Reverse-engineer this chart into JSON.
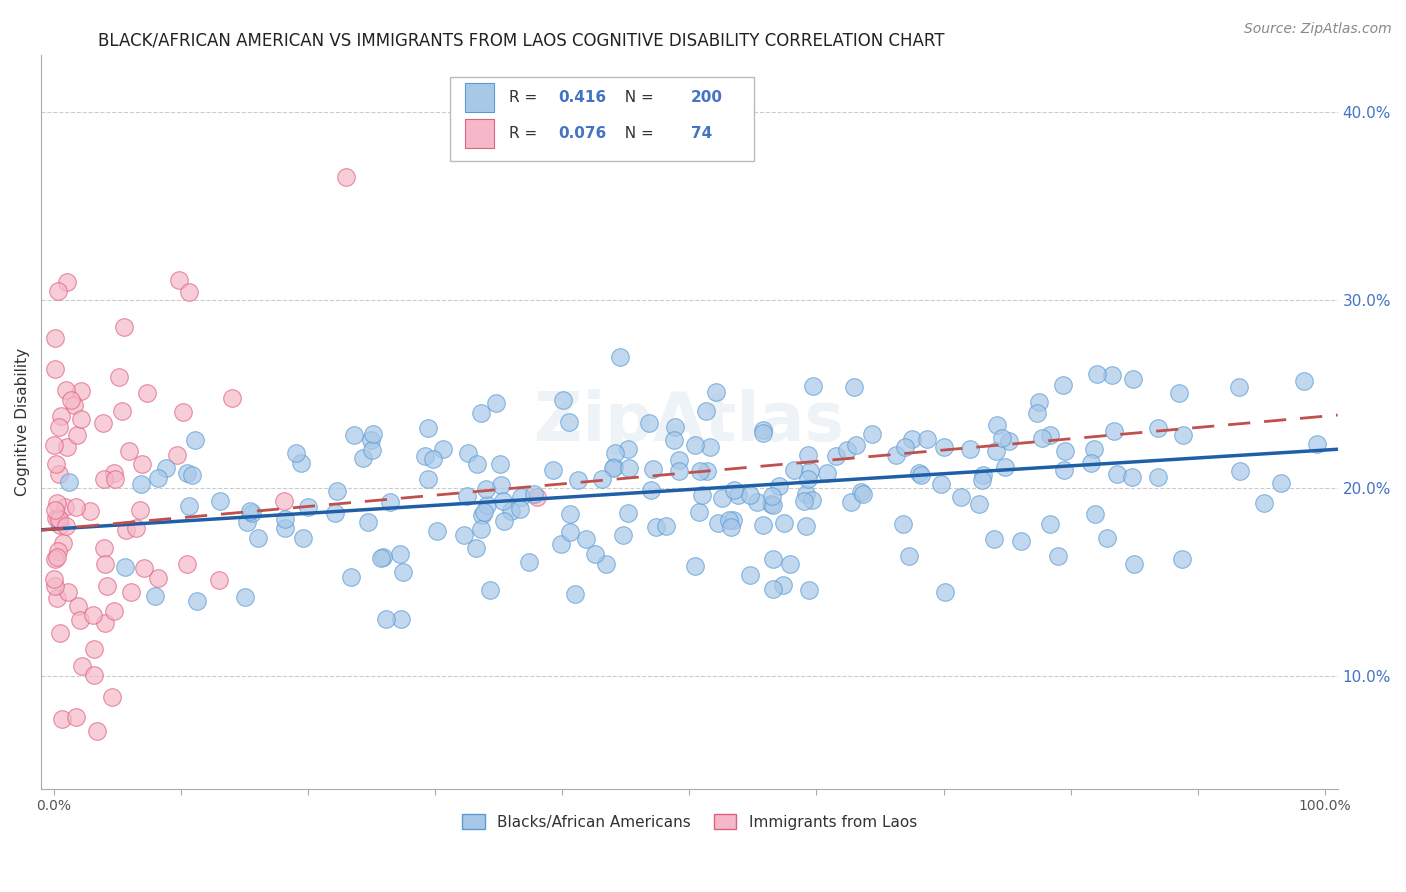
{
  "title": "BLACK/AFRICAN AMERICAN VS IMMIGRANTS FROM LAOS COGNITIVE DISABILITY CORRELATION CHART",
  "source": "Source: ZipAtlas.com",
  "ylabel": "Cognitive Disability",
  "xlim": [
    -0.01,
    1.01
  ],
  "ylim": [
    0.04,
    0.43
  ],
  "yticks": [
    0.1,
    0.2,
    0.3,
    0.4
  ],
  "ytick_labels": [
    "10.0%",
    "20.0%",
    "30.0%",
    "40.0%"
  ],
  "xticks": [
    0.0,
    0.1,
    0.2,
    0.3,
    0.4,
    0.5,
    0.6,
    0.7,
    0.8,
    0.9,
    1.0
  ],
  "xtick_labels": [
    "0.0%",
    "",
    "",
    "",
    "",
    "",
    "",
    "",
    "",
    "",
    "100.0%"
  ],
  "blue_R": 0.416,
  "blue_N": 200,
  "pink_R": 0.076,
  "pink_N": 74,
  "blue_color": "#a8c8e8",
  "blue_edge": "#5b9bd5",
  "pink_color": "#f4b8c8",
  "pink_edge": "#e06080",
  "blue_line_color": "#1f5fa6",
  "pink_line_color": "#c0504d",
  "legend_label_blue": "Blacks/African Americans",
  "legend_label_pink": "Immigrants from Laos",
  "blue_intercept": 0.178,
  "blue_slope": 0.042,
  "pink_intercept": 0.178,
  "pink_slope": 0.06,
  "watermark": "ZipAtlas",
  "title_fontsize": 12,
  "axis_label_fontsize": 11,
  "tick_fontsize": 10,
  "legend_fontsize": 11,
  "source_fontsize": 10
}
